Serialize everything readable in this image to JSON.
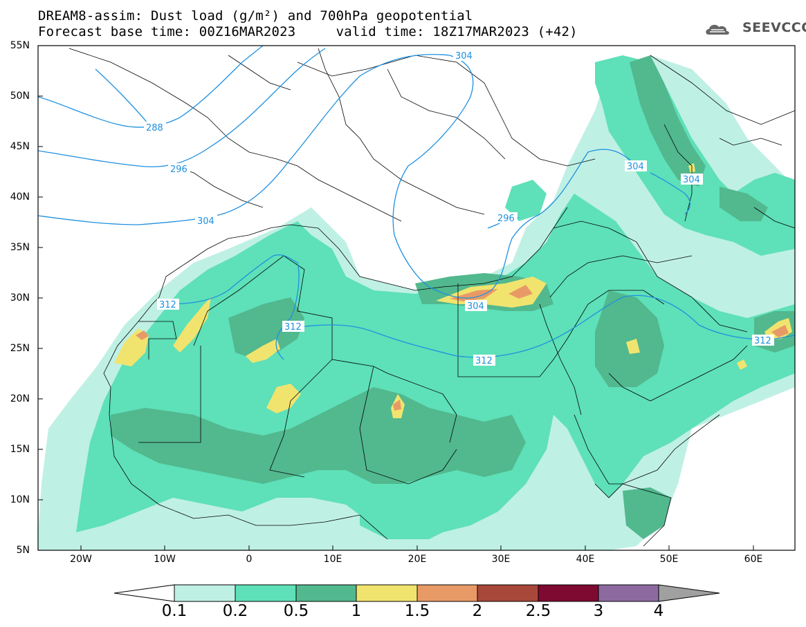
{
  "header": {
    "line1": "DREAM8-assim: Dust load (g/m²) and 700hPa geopotential",
    "line2": "Forecast base time: 00Z16MAR2023     valid time: 18Z17MAR2023 (+42)",
    "logo_text": "SEEVCCC"
  },
  "map": {
    "lat_labels": [
      "55N",
      "50N",
      "45N",
      "40N",
      "35N",
      "30N",
      "25N",
      "20N",
      "15N",
      "10N",
      "5N"
    ],
    "lon_labels": [
      "20W",
      "10W",
      "0",
      "10E",
      "20E",
      "30E",
      "40E",
      "50E",
      "60E"
    ],
    "contour_labels": [
      "288",
      "296",
      "304",
      "304",
      "304",
      "296",
      "304",
      "312",
      "312",
      "304",
      "312",
      "312"
    ]
  },
  "colorbar": {
    "labels": [
      "0.1",
      "0.2",
      "0.5",
      "1",
      "1.5",
      "2",
      "2.5",
      "3",
      "4"
    ],
    "colors": [
      "#bff0e4",
      "#5ee0b8",
      "#52b88e",
      "#f1e46e",
      "#e89a66",
      "#a8483a",
      "#7e0a32",
      "#8c6aa0",
      "#a0a0a0"
    ]
  },
  "colors": {
    "contour": "#1e90e0",
    "dust_low": "#bff0e4",
    "dust_mid": "#5ee0b8",
    "dust_high": "#52b88e",
    "dust_yellow": "#f1e46e",
    "dust_orange": "#e89a66",
    "dust_red": "#a8483a"
  }
}
